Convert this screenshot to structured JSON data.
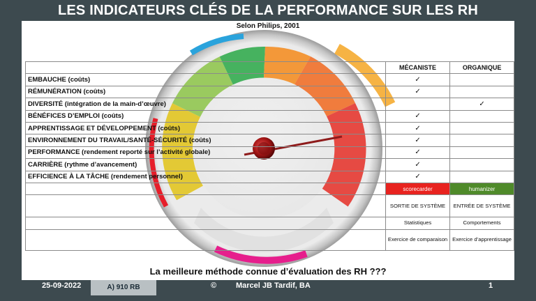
{
  "title": "LES INDICATEURS CLÉS DE LA PERFORMANCE SUR LES RH",
  "subtitle": "Selon Philips, 2001",
  "table": {
    "headers": [
      "MÉCANISTE",
      "ORGANIQUE"
    ],
    "rows": [
      {
        "label": "EMBAUCHE (coûts)",
        "mecaniste": "✓",
        "organique": ""
      },
      {
        "label": "RÉMUNÉRATION (coûts)",
        "mecaniste": "✓",
        "organique": ""
      },
      {
        "label": "DIVERSITÉ (intégration de la main-d’œuvre)",
        "mecaniste": "",
        "organique": "✓"
      },
      {
        "label": "BÉNÉFICES D’EMPLOI (coûts)",
        "mecaniste": "✓",
        "organique": ""
      },
      {
        "label": "APPRENTISSAGE ET DÉVELOPPEMENT (coûts)",
        "mecaniste": "✓",
        "organique": ""
      },
      {
        "label": "ENVIRONNEMENT DU TRAVAIL/SANTÉ-SÉCURITÉ (coûts)",
        "mecaniste": "✓",
        "organique": ""
      },
      {
        "label": "PERFORMANCE (rendement reporté sur l’activité globale)",
        "mecaniste": "✓",
        "organique": ""
      },
      {
        "label": "CARRIÈRE (rythme d’avancement)",
        "mecaniste": "✓",
        "organique": ""
      },
      {
        "label": "EFFICIENCE À LA TÂCHE (rendement personnel)",
        "mecaniste": "✓",
        "organique": ""
      }
    ],
    "tags": {
      "mecaniste": "scorecarder",
      "organique": "humanizer"
    },
    "extra": [
      {
        "mecaniste": "SORTIE DE SYSTÈME",
        "organique": "ENTRÉE DE SYSTÈME"
      },
      {
        "mecaniste": "Statistiques",
        "organique": "Comportements"
      },
      {
        "mecaniste": "Exercice de comparaison",
        "organique": "Exercice d’apprentissage"
      }
    ]
  },
  "question": "La meilleure méthode connue d’évaluation des RH ???",
  "footer": {
    "date": "25-09-2022",
    "code": "A) 910 RB",
    "copyright": "©",
    "author": "Marcel JB Tardif, BA",
    "page": "1"
  },
  "colors": {
    "background": "#3d4a4f",
    "scorecarder": "#e8231f",
    "humanizer": "#4f8a2a",
    "blue_accent": "#2aa3dc",
    "magenta_accent": "#e61e8c",
    "orange_accent": "#f5a623"
  }
}
